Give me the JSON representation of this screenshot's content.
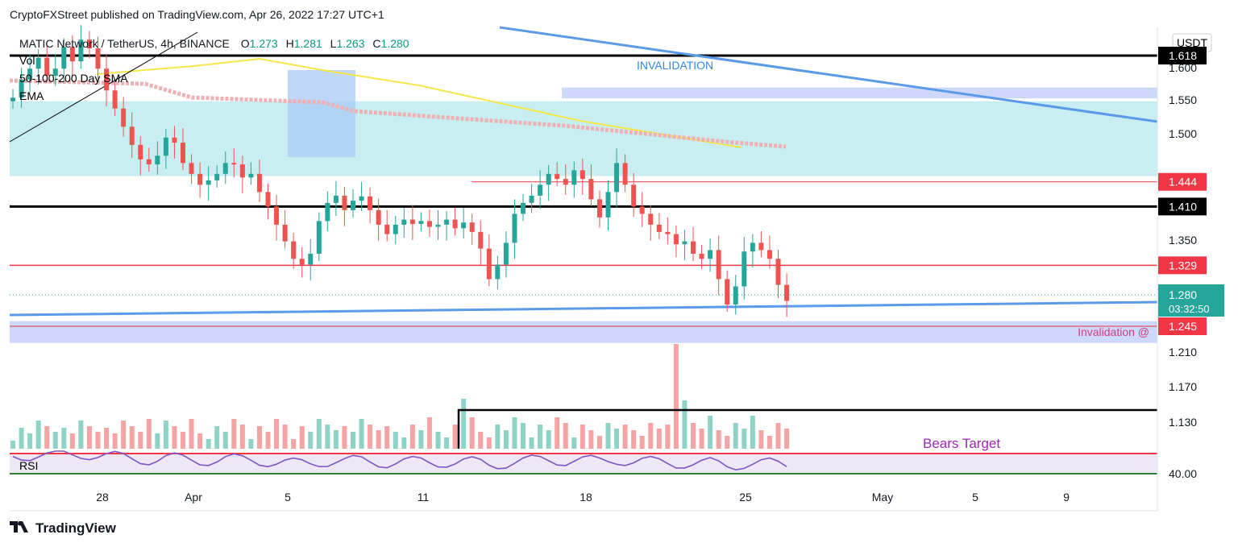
{
  "header": {
    "published": "CryptoFXStreet published on TradingView.com, Apr 26, 2022 17:27 UTC+1"
  },
  "footer": {
    "brand": "TradingView"
  },
  "chart_data": {
    "type": "candlestick",
    "symbol_line": {
      "name": "MATIC Network / TetherUS, 4h, BINANCE",
      "o_label": "O",
      "o": "1.273",
      "h_label": "H",
      "h": "1.281",
      "l_label": "L",
      "l": "1.263",
      "c_label": "C",
      "c": "1.280"
    },
    "indicators": [
      "Vol",
      "50-100-200 Day SMA",
      "EMA"
    ],
    "rsi_label": "RSI",
    "currency": "USDT",
    "y_ticks": [
      "1.600",
      "1.550",
      "1.500",
      "1.350",
      "1.210",
      "1.170",
      "1.130"
    ],
    "rsi_tick": "40.00",
    "price_labels": [
      {
        "text": "1.618",
        "kind": "black",
        "price": 1.618
      },
      {
        "text": "1.444",
        "kind": "red",
        "price": 1.444
      },
      {
        "text": "1.410",
        "kind": "black",
        "price": 1.41
      },
      {
        "text": "1.329",
        "kind": "red",
        "price": 1.329
      },
      {
        "text": "1.280",
        "kind": "current",
        "price": 1.28,
        "sub": "03:32:50"
      },
      {
        "text": "1.245",
        "kind": "red",
        "price": 1.245
      }
    ],
    "x_ticks": [
      "28",
      "Apr",
      "5",
      "11",
      "18",
      "25",
      "May",
      "5",
      "9"
    ],
    "annotations": {
      "invalidation_top": "INVALIDATION",
      "invalidation_bottom": "Invalidation @",
      "bears_target": "Bears Target"
    },
    "y_range": [
      1.18,
      1.645
    ],
    "horizontal_levels": [
      {
        "price": 1.618,
        "color": "#000000",
        "width": 3
      },
      {
        "price": 1.444,
        "color": "#f23645",
        "width": 1
      },
      {
        "price": 1.41,
        "color": "#000000",
        "width": 3
      },
      {
        "price": 1.329,
        "color": "#f23645",
        "width": 1.5
      },
      {
        "price": 1.245,
        "color": "#f23645",
        "width": 1
      }
    ],
    "zones": [
      {
        "from": 1.452,
        "to": 1.555,
        "color": "#c8eef2"
      },
      {
        "from": 1.559,
        "to": 1.574,
        "color": "#cdd8fb"
      },
      {
        "from": 1.222,
        "to": 1.252,
        "color": "#cdd8fb"
      }
    ],
    "colors": {
      "up": "#26a69a",
      "down": "#ef5350",
      "sma": "#f5e74a",
      "ema": "#eeb0b4",
      "trend": "#5b9ae8",
      "rsi": "#7e57c2"
    },
    "candles_close": [
      1.56,
      1.585,
      1.6,
      1.615,
      1.59,
      1.6,
      1.63,
      1.61,
      1.64,
      1.628,
      1.6,
      1.57,
      1.545,
      1.52,
      1.495,
      1.475,
      1.468,
      1.48,
      1.505,
      1.498,
      1.47,
      1.455,
      1.44,
      1.446,
      1.455,
      1.47,
      1.468,
      1.45,
      1.455,
      1.43,
      1.41,
      1.385,
      1.362,
      1.338,
      1.33,
      1.345,
      1.39,
      1.415,
      1.425,
      1.405,
      1.418,
      1.424,
      1.405,
      1.385,
      1.372,
      1.385,
      1.392,
      1.386,
      1.39,
      1.382,
      1.385,
      1.392,
      1.38,
      1.388,
      1.375,
      1.352,
      1.31,
      1.33,
      1.36,
      1.4,
      1.415,
      1.425,
      1.44,
      1.455,
      1.448,
      1.44,
      1.46,
      1.448,
      1.42,
      1.395,
      1.43,
      1.47,
      1.44,
      1.41,
      1.4,
      1.385,
      1.375,
      1.372,
      1.358,
      1.362,
      1.345,
      1.338,
      1.35,
      1.31,
      1.275,
      1.3,
      1.348,
      1.36,
      1.35,
      1.338,
      1.302,
      1.28
    ]
  }
}
